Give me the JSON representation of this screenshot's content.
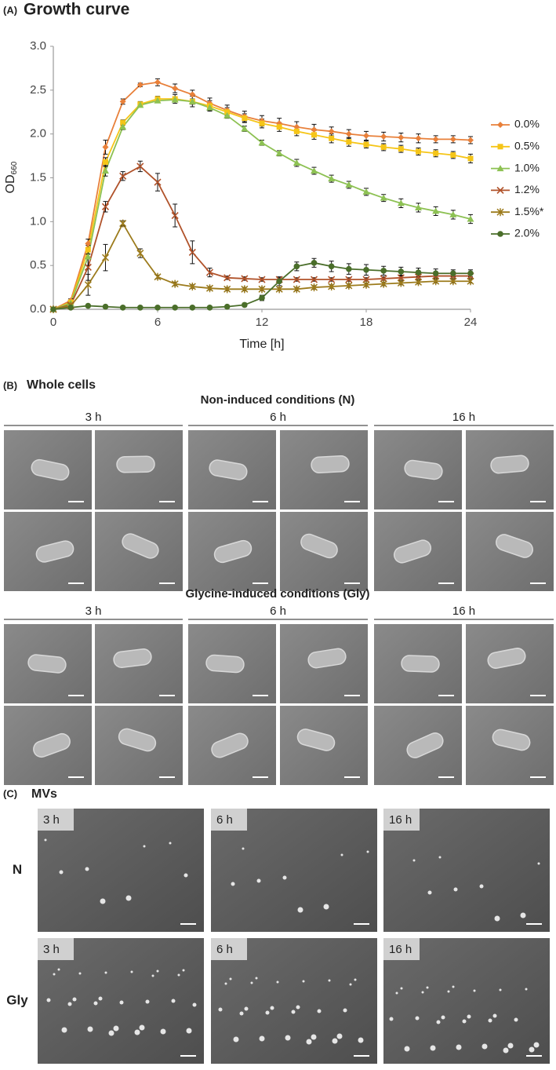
{
  "chart_data": {
    "type": "line",
    "panel_label": "(A)",
    "title": "Growth curve",
    "x_label": "Time [h]",
    "y_label": "OD",
    "y_label_sub": "660",
    "x": [
      0,
      1,
      2,
      3,
      4,
      5,
      6,
      7,
      8,
      9,
      10,
      11,
      12,
      13,
      14,
      15,
      16,
      17,
      18,
      19,
      20,
      21,
      22,
      23,
      24
    ],
    "xlim": [
      0,
      24
    ],
    "xticks": [
      0,
      6,
      12,
      18,
      24
    ],
    "ylim": [
      0,
      3
    ],
    "yticks": [
      {
        "value": 0,
        "label": "0.0"
      },
      0.5,
      {
        "value": 1,
        "label": "1.0"
      },
      1.5,
      {
        "value": 2,
        "label": "2.0"
      },
      2.5,
      {
        "value": 3,
        "label": "3.0"
      }
    ],
    "series": [
      {
        "name": "0.0%",
        "color": "#e8803a",
        "marker": "diamond",
        "values": [
          0,
          0.1,
          0.75,
          1.85,
          2.37,
          2.56,
          2.59,
          2.52,
          2.45,
          2.35,
          2.27,
          2.2,
          2.15,
          2.12,
          2.08,
          2.05,
          2.03,
          2.0,
          1.98,
          1.97,
          1.96,
          1.95,
          1.94,
          1.94,
          1.93
        ],
        "errors": [
          0,
          0.02,
          0.05,
          0.08,
          0.03,
          0.02,
          0.04,
          0.05,
          0.05,
          0.06,
          0.06,
          0.06,
          0.06,
          0.06,
          0.06,
          0.06,
          0.05,
          0.05,
          0.05,
          0.05,
          0.05,
          0.05,
          0.04,
          0.04,
          0.04
        ]
      },
      {
        "name": "0.5%",
        "color": "#f5c518",
        "marker": "square",
        "values": [
          0,
          0.08,
          0.68,
          1.68,
          2.13,
          2.34,
          2.4,
          2.4,
          2.37,
          2.32,
          2.25,
          2.18,
          2.12,
          2.08,
          2.03,
          1.99,
          1.95,
          1.91,
          1.88,
          1.85,
          1.83,
          1.8,
          1.78,
          1.76,
          1.72
        ],
        "errors": [
          0,
          0.02,
          0.05,
          0.05,
          0.03,
          0.03,
          0.03,
          0.05,
          0.06,
          0.06,
          0.05,
          0.05,
          0.05,
          0.05,
          0.05,
          0.05,
          0.05,
          0.05,
          0.04,
          0.04,
          0.04,
          0.04,
          0.04,
          0.04,
          0.05
        ]
      },
      {
        "name": "1.0%",
        "color": "#8dc153",
        "marker": "triangle",
        "values": [
          0,
          0.07,
          0.6,
          1.58,
          2.08,
          2.33,
          2.38,
          2.39,
          2.37,
          2.3,
          2.21,
          2.06,
          1.9,
          1.78,
          1.67,
          1.58,
          1.49,
          1.42,
          1.34,
          1.27,
          1.21,
          1.16,
          1.12,
          1.08,
          1.03
        ],
        "errors": [
          0,
          0.02,
          0.1,
          0.06,
          0.03,
          0.02,
          0.02,
          0.02,
          0.03,
          0.03,
          0.03,
          0.03,
          0.03,
          0.03,
          0.04,
          0.04,
          0.04,
          0.04,
          0.04,
          0.04,
          0.05,
          0.05,
          0.05,
          0.05,
          0.05
        ]
      },
      {
        "name": "1.2%",
        "color": "#b0522a",
        "marker": "x",
        "values": [
          0,
          0.05,
          0.48,
          1.17,
          1.52,
          1.63,
          1.45,
          1.07,
          0.65,
          0.42,
          0.36,
          0.35,
          0.34,
          0.34,
          0.34,
          0.34,
          0.34,
          0.34,
          0.34,
          0.35,
          0.36,
          0.37,
          0.38,
          0.38,
          0.38
        ],
        "errors": [
          0,
          0.02,
          0.15,
          0.06,
          0.05,
          0.06,
          0.1,
          0.13,
          0.13,
          0.05,
          0.02,
          0.02,
          0.02,
          0.02,
          0.02,
          0.02,
          0.02,
          0.02,
          0.02,
          0.02,
          0.03,
          0.03,
          0.03,
          0.03,
          0.03
        ]
      },
      {
        "name": "1.5%*",
        "color": "#9c7b1c",
        "marker": "asterisk",
        "values": [
          0,
          0.04,
          0.28,
          0.59,
          0.98,
          0.64,
          0.37,
          0.29,
          0.26,
          0.24,
          0.23,
          0.23,
          0.23,
          0.23,
          0.23,
          0.25,
          0.26,
          0.27,
          0.28,
          0.29,
          0.3,
          0.31,
          0.32,
          0.32,
          0.32
        ],
        "errors": [
          0,
          0.02,
          0.12,
          0.15,
          0.03,
          0.05,
          0.02,
          0.02,
          0.02,
          0.02,
          0.02,
          0.02,
          0.02,
          0.02,
          0.02,
          0.02,
          0.02,
          0.02,
          0.02,
          0.02,
          0.02,
          0.02,
          0.02,
          0.02,
          0.02
        ]
      },
      {
        "name": "2.0%",
        "color": "#4a6e2a",
        "marker": "circle",
        "values": [
          0,
          0.02,
          0.04,
          0.03,
          0.02,
          0.02,
          0.02,
          0.02,
          0.02,
          0.02,
          0.03,
          0.05,
          0.13,
          0.32,
          0.49,
          0.53,
          0.49,
          0.46,
          0.45,
          0.44,
          0.43,
          0.42,
          0.41,
          0.41,
          0.41
        ],
        "errors": [
          0,
          0.01,
          0.01,
          0.01,
          0.01,
          0.01,
          0.01,
          0.01,
          0.01,
          0.01,
          0.01,
          0.02,
          0.03,
          0.05,
          0.05,
          0.05,
          0.06,
          0.06,
          0.06,
          0.05,
          0.05,
          0.05,
          0.05,
          0.04,
          0.04
        ]
      }
    ]
  },
  "panel_b": {
    "label": "(B)",
    "title": "Whole cells",
    "groups": [
      {
        "title": "Non-induced conditions (N)",
        "times": [
          "3 h",
          "6 h",
          "16 h"
        ]
      },
      {
        "title": "Glycine-induced conditions (Gly)",
        "times": [
          "3 h",
          "6 h",
          "16 h"
        ]
      }
    ]
  },
  "panel_c": {
    "label": "(C)",
    "title": "MVs",
    "rows": [
      {
        "label": "N",
        "times": [
          "3 h",
          "6 h",
          "16 h"
        ]
      },
      {
        "label": "Gly",
        "times": [
          "3 h",
          "6 h",
          "16 h"
        ]
      }
    ]
  }
}
